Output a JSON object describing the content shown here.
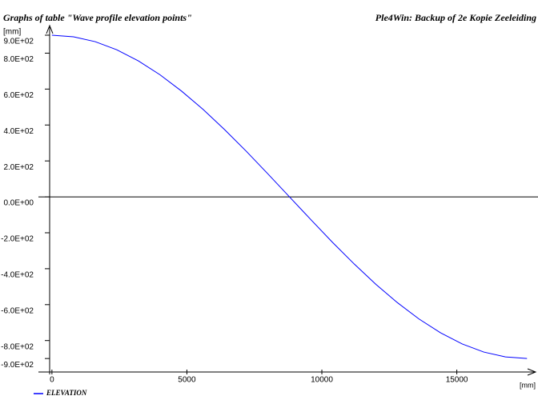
{
  "chart_data": {
    "type": "line",
    "title": "Graphs of table \"Wave profile elevation points\"",
    "subtitle": "Ple4Win: Backup of 2e Kopie Zeeleiding",
    "y_label": "[mm]",
    "x_label": "[mm]",
    "x": [
      0,
      800,
      1600,
      2400,
      3200,
      4000,
      4800,
      5600,
      6400,
      7200,
      8000,
      8800,
      9600,
      10400,
      11200,
      12000,
      12800,
      13600,
      14400,
      15200,
      16000,
      16800,
      17600
    ],
    "series": [
      {
        "name": "ELEVATION",
        "color": "#0000ff",
        "values": [
          900,
          891,
          864,
          819,
          757,
          680,
          589,
          487,
          374,
          254,
          128,
          0,
          -128,
          -254,
          -374,
          -487,
          -589,
          -680,
          -757,
          -819,
          -864,
          -891,
          -900
        ]
      }
    ],
    "xlim": [
      -500,
      17800
    ],
    "ylim": [
      -975,
      940
    ],
    "xticks": [
      0,
      5000,
      10000,
      15000
    ],
    "yticks": [
      {
        "value": 900,
        "label": "9.0E+02"
      },
      {
        "value": 800,
        "label": "8.0E+02"
      },
      {
        "value": 600,
        "label": "6.0E+02"
      },
      {
        "value": 400,
        "label": "4.0E+02"
      },
      {
        "value": 200,
        "label": "2.0E+02"
      },
      {
        "value": 0,
        "label": "0.0E+00"
      },
      {
        "value": -200,
        "label": "-2.0E+02"
      },
      {
        "value": -400,
        "label": "-4.0E+02"
      },
      {
        "value": -600,
        "label": "-6.0E+02"
      },
      {
        "value": -800,
        "label": "-8.0E+02"
      },
      {
        "value": -900,
        "label": "-9.0E+02"
      }
    ]
  }
}
